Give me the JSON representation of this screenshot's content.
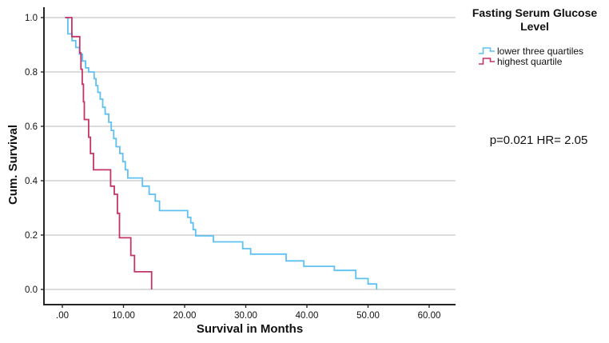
{
  "chart_data": {
    "type": "line",
    "subtype": "kaplan-meier-step-survival",
    "legend_title": "Fasting Serum Glucose Level",
    "xlabel": "Survival in Months",
    "ylabel": "Cum. Survival",
    "annotation": "p=0.021 HR= 2.05",
    "xlim": [
      0,
      60
    ],
    "ylim": [
      0.0,
      1.0
    ],
    "grid": "horizontal-only",
    "legend_position": "top-right-outside",
    "x_tick_values": [
      0,
      10,
      20,
      30,
      40,
      50,
      60
    ],
    "x_tick_labels": [
      ".00",
      "10.00",
      "20.00",
      "30.00",
      "40.00",
      "50.00",
      "60.00"
    ],
    "y_tick_values": [
      0.0,
      0.2,
      0.4,
      0.6,
      0.8,
      1.0
    ],
    "y_tick_labels": [
      "0.0",
      "0.2",
      "0.4",
      "0.6",
      "0.8",
      "1.0"
    ],
    "colors": {
      "lower_three_quartiles": "#5EC1F2",
      "highest_quartile": "#C43566",
      "gridline": "#c7c7c7",
      "axis": "#262626",
      "text": "#111111"
    },
    "series": [
      {
        "name": "lower three quartiles",
        "color": "#5EC1F2",
        "steps": [
          [
            0.45,
            1.0
          ],
          [
            0.9,
            0.94
          ],
          [
            1.6,
            0.915
          ],
          [
            2.2,
            0.89
          ],
          [
            2.8,
            0.865
          ],
          [
            3.3,
            0.84
          ],
          [
            3.8,
            0.815
          ],
          [
            4.3,
            0.8
          ],
          [
            5.2,
            0.775
          ],
          [
            5.5,
            0.75
          ],
          [
            5.8,
            0.725
          ],
          [
            6.2,
            0.7
          ],
          [
            6.6,
            0.67
          ],
          [
            7.0,
            0.645
          ],
          [
            7.6,
            0.615
          ],
          [
            8.0,
            0.585
          ],
          [
            8.4,
            0.555
          ],
          [
            8.8,
            0.525
          ],
          [
            9.4,
            0.5
          ],
          [
            9.9,
            0.47
          ],
          [
            10.3,
            0.44
          ],
          [
            10.7,
            0.41
          ],
          [
            13.1,
            0.38
          ],
          [
            14.2,
            0.35
          ],
          [
            15.2,
            0.325
          ],
          [
            15.9,
            0.29
          ],
          [
            20.5,
            0.265
          ],
          [
            21.0,
            0.245
          ],
          [
            21.4,
            0.22
          ],
          [
            21.8,
            0.197
          ],
          [
            24.7,
            0.175
          ],
          [
            29.5,
            0.15
          ],
          [
            30.8,
            0.13
          ],
          [
            36.6,
            0.105
          ],
          [
            39.5,
            0.085
          ],
          [
            44.5,
            0.07
          ],
          [
            48.0,
            0.04
          ],
          [
            50.0,
            0.02
          ],
          [
            51.4,
            0.0
          ]
        ]
      },
      {
        "name": "highest quartile",
        "color": "#C43566",
        "steps": [
          [
            0.45,
            1.0
          ],
          [
            1.55,
            0.93
          ],
          [
            2.85,
            0.87
          ],
          [
            3.05,
            0.81
          ],
          [
            3.25,
            0.755
          ],
          [
            3.45,
            0.69
          ],
          [
            3.6,
            0.625
          ],
          [
            4.3,
            0.56
          ],
          [
            4.6,
            0.5
          ],
          [
            5.1,
            0.44
          ],
          [
            7.9,
            0.38
          ],
          [
            8.5,
            0.35
          ],
          [
            9.0,
            0.28
          ],
          [
            9.35,
            0.19
          ],
          [
            11.2,
            0.125
          ],
          [
            11.8,
            0.065
          ],
          [
            14.6,
            0.0
          ]
        ]
      }
    ]
  }
}
